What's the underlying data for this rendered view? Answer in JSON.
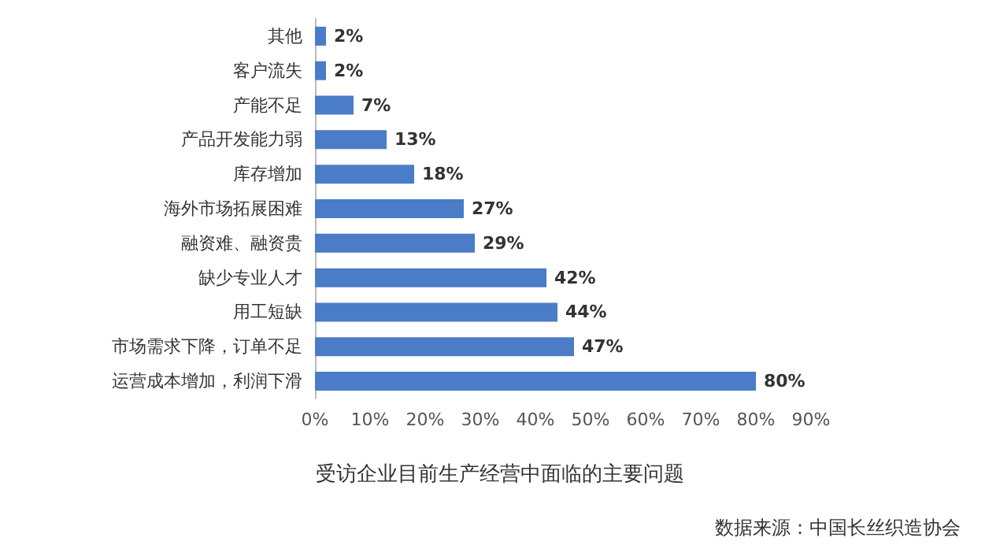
{
  "chart_data": {
    "type": "bar",
    "orientation": "horizontal",
    "title": "受访企业目前生产经营中面临的主要问题",
    "annotations": [
      "数据来源：中国长丝织造协会"
    ],
    "categories": [
      "其他",
      "客户流失",
      "产能不足",
      "产品开发能力弱",
      "库存增加",
      "海外市场拓展困难",
      "融资难、融资贵",
      "缺少专业人才",
      "用工短缺",
      "市场需求下降，订单不足",
      "运营成本增加，利润下滑"
    ],
    "values": [
      2,
      2,
      7,
      13,
      18,
      27,
      29,
      42,
      44,
      47,
      80
    ],
    "value_labels": [
      "2%",
      "2%",
      "7%",
      "13%",
      "18%",
      "27%",
      "29%",
      "42%",
      "44%",
      "47%",
      "80%"
    ],
    "color": "#4a7cc7",
    "xlim": [
      0,
      90
    ],
    "xticks": [
      {
        "value": 0,
        "label": "0%"
      },
      {
        "value": 10,
        "label": "10%"
      },
      {
        "value": 20,
        "label": "20%"
      },
      {
        "value": 30,
        "label": "30%"
      },
      {
        "value": 40,
        "label": "40%"
      },
      {
        "value": 50,
        "label": "50%"
      },
      {
        "value": 60,
        "label": "60%"
      },
      {
        "value": 70,
        "label": "70%"
      },
      {
        "value": 80,
        "label": "80%"
      },
      {
        "value": 90,
        "label": "90%"
      }
    ],
    "grid": false
  }
}
